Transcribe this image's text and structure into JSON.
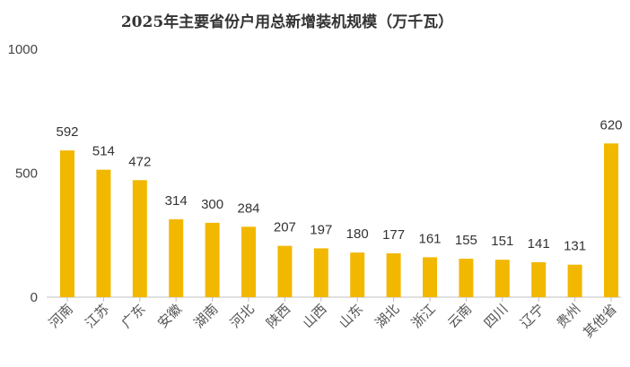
{
  "chart_data": {
    "type": "bar",
    "title": "2025年主要省份户用总新增装机规模（万千瓦）",
    "xlabel": "",
    "ylabel": "",
    "ylim": [
      0,
      1000
    ],
    "yticks": [
      "0",
      "500",
      "1000"
    ],
    "grid": false,
    "bar_color": "#F2B800",
    "categories": [
      "河南",
      "江苏",
      "广东",
      "安徽",
      "湖南",
      "河北",
      "陕西",
      "山西",
      "山东",
      "湖北",
      "浙江",
      "云南",
      "四川",
      "辽宁",
      "贵州",
      "其他省"
    ],
    "values": [
      592,
      514,
      472,
      314,
      300,
      284,
      207,
      197,
      180,
      177,
      161,
      155,
      151,
      141,
      131,
      620
    ]
  }
}
